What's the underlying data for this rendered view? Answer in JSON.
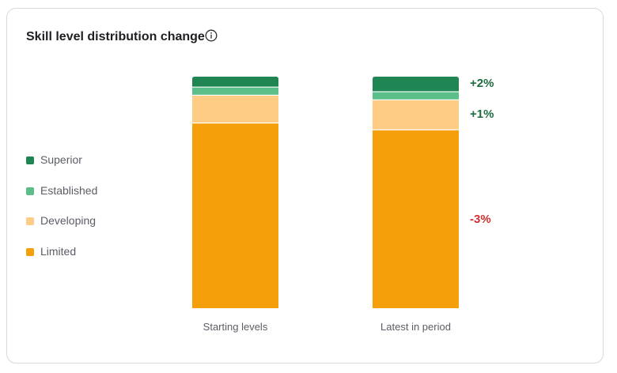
{
  "card": {
    "title": "Skill level distribution change",
    "info_icon": "info-icon"
  },
  "legend": [
    {
      "label": "Superior",
      "color": "#1e8553"
    },
    {
      "label": "Established",
      "color": "#5cbf8a"
    },
    {
      "label": "Developing",
      "color": "#ffcc85"
    },
    {
      "label": "Limited",
      "color": "#f5a00a"
    }
  ],
  "chart_data": {
    "type": "bar",
    "stacked": true,
    "percent": true,
    "categories": [
      "Starting levels",
      "Latest in period"
    ],
    "series": [
      {
        "name": "Limited",
        "values": [
          80,
          77
        ],
        "color": "#f5a00a"
      },
      {
        "name": "Developing",
        "values": [
          12,
          13
        ],
        "color": "#ffcc85"
      },
      {
        "name": "Established",
        "values": [
          3.5,
          3.5
        ],
        "color": "#5cbf8a"
      },
      {
        "name": "Superior",
        "values": [
          4.5,
          6.5
        ],
        "color": "#1e8553"
      }
    ],
    "annotations": [
      {
        "series": "Superior",
        "text": "+2%",
        "color": "#1e6b3f"
      },
      {
        "series": "Developing",
        "text": "+1%",
        "color": "#1e6b3f"
      },
      {
        "series": "Limited",
        "text": "-3%",
        "color": "#d32f2f"
      }
    ],
    "ylim": [
      0,
      100
    ],
    "grid": false,
    "legend_position": "left"
  }
}
